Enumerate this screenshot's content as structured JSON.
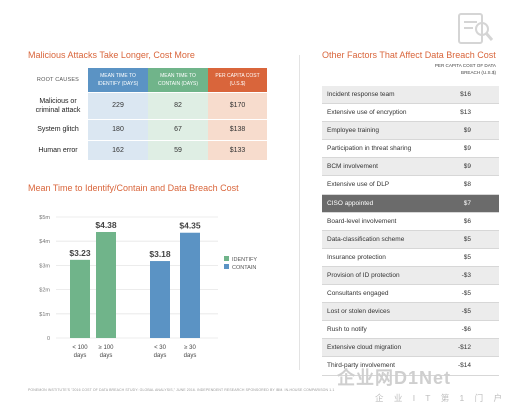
{
  "left": {
    "title": "Malicious Attacks Take Longer, Cost More",
    "table": {
      "headers": [
        "ROOT CAUSES",
        "MEAN TIME TO IDENTIFY (DAYS)",
        "MEAN TIME TO CONTAIN (DAYS)",
        "PER CAPITA COST (U.S.$)"
      ],
      "rows": [
        {
          "cause": "Malicious or criminal attack",
          "identify": "229",
          "contain": "82",
          "cost": "$170"
        },
        {
          "cause": "System glitch",
          "identify": "180",
          "contain": "67",
          "cost": "$138"
        },
        {
          "cause": "Human error",
          "identify": "162",
          "contain": "59",
          "cost": "$133"
        }
      ]
    },
    "chart_title": "Mean Time to Identify/Contain and Data Breach Cost"
  },
  "right": {
    "title": "Other Factors That Affect Data Breach Cost",
    "column_header": "PER CAPITA COST OF DATA BREACH (U.S.$)",
    "factors": [
      {
        "label": "Incident response team",
        "value": "$16"
      },
      {
        "label": "Extensive use of encryption",
        "value": "$13"
      },
      {
        "label": "Employee training",
        "value": "$9"
      },
      {
        "label": "Participation in threat sharing",
        "value": "$9"
      },
      {
        "label": "BCM involvement",
        "value": "$9"
      },
      {
        "label": "Extensive use of DLP",
        "value": "$8"
      },
      {
        "label": "CISO appointed",
        "value": "$7"
      },
      {
        "label": "Board-level involvement",
        "value": "$6"
      },
      {
        "label": "Data-classification scheme",
        "value": "$5"
      },
      {
        "label": "Insurance protection",
        "value": "$5"
      },
      {
        "label": "Provision of ID protection",
        "value": "-$3"
      },
      {
        "label": "Consultants engaged",
        "value": "-$5"
      },
      {
        "label": "Lost or stolen devices",
        "value": "-$5"
      },
      {
        "label": "Rush to notify",
        "value": "-$6"
      },
      {
        "label": "Extensive cloud migration",
        "value": "-$12"
      },
      {
        "label": "Third-party involvement",
        "value": "-$14"
      }
    ]
  },
  "footnote": "PONEMON INSTITUTE'S \"2016 COST OF DATA BREACH STUDY: GLOBAL ANALYSIS,\" JUNE 2016. INDEPENDENT RESEARCH SPONSORED BY IBM. IN-HOUSE COMPARISON 1.1",
  "watermark": {
    "text": "企业网D1Net",
    "sub": "企 业 I T 第 1 门 户"
  },
  "colors": {
    "accent": "#d9653b",
    "identify": "#5b93c4",
    "contain": "#70b48a",
    "highlight_row": "#6b6b6b"
  },
  "icons": {
    "logo": "magnifier-document-icon"
  },
  "chart_data": {
    "type": "bar",
    "title": "Mean Time to Identify/Contain and Data Breach Cost",
    "xlabel": "",
    "ylabel": "",
    "ylim": [
      0,
      5
    ],
    "yticks": [
      0,
      1,
      2,
      3,
      4,
      5
    ],
    "ytick_labels": [
      "0",
      "$1m",
      "$2m",
      "$3m",
      "$4m",
      "$5m"
    ],
    "legend": [
      "IDENTIFY",
      "CONTAIN"
    ],
    "legend_position": "right",
    "grid": true,
    "groups": [
      {
        "series": "IDENTIFY",
        "bars": [
          {
            "category": "< 100 days",
            "value": 3.23,
            "label": "$3.23"
          },
          {
            "category": "≥ 100 days",
            "value": 4.38,
            "label": "$4.38"
          }
        ]
      },
      {
        "series": "CONTAIN",
        "bars": [
          {
            "category": "< 30 days",
            "value": 3.18,
            "label": "$3.18"
          },
          {
            "category": "≥ 30 days",
            "value": 4.35,
            "label": "$4.35"
          }
        ]
      }
    ]
  }
}
